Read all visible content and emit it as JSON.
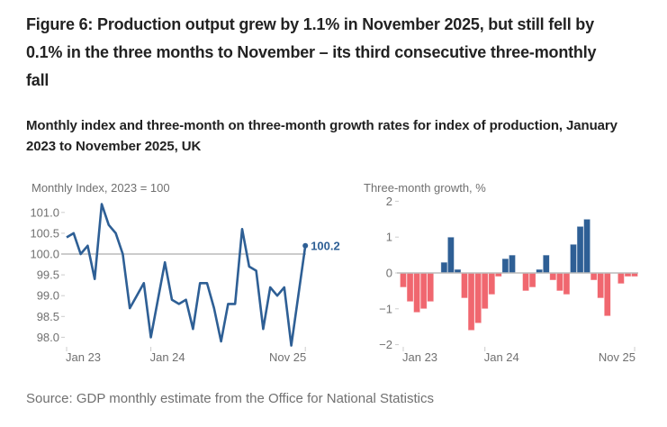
{
  "figure": {
    "title": "Figure 6: Production output grew by 1.1% in November 2025, but still fell by 0.1% in the three months to November – its third consecutive three-monthly fall",
    "subtitle": "Monthly index and three-month on three-month growth rates for index of production, January 2023 to November 2025, UK",
    "source": "Source: GDP monthly estimate from the Office for National Statistics"
  },
  "colors": {
    "line": "#2e5f95",
    "positive": "#2e5f95",
    "negative": "#f0676f",
    "reference": "#bbbbbb",
    "axis_text": "#707070"
  },
  "chart_data": [
    {
      "type": "line",
      "title": "Monthly Index, 2023 = 100",
      "ylabel": "Monthly Index, 2023 = 100",
      "xlabel": "",
      "x_tick_labels": [
        "Jan 23",
        "Jan 24",
        "Nov 25"
      ],
      "x_tick_index": [
        0,
        12,
        34
      ],
      "y_ticks": [
        98.0,
        98.5,
        99.0,
        99.5,
        100.0,
        100.5,
        101.0
      ],
      "y_tick_labels": [
        "98.0",
        "98.5",
        "99.0",
        "99.5",
        "100.0",
        "100.5",
        "101.0"
      ],
      "ylim": [
        97.8,
        101.3
      ],
      "reference_line": 100.0,
      "end_label": "100.2",
      "categories": [
        "Jan 23",
        "Feb 23",
        "Mar 23",
        "Apr 23",
        "May 23",
        "Jun 23",
        "Jul 23",
        "Aug 23",
        "Sep 23",
        "Oct 23",
        "Nov 23",
        "Dec 23",
        "Jan 24",
        "Feb 24",
        "Mar 24",
        "Apr 24",
        "May 24",
        "Jun 24",
        "Jul 24",
        "Aug 24",
        "Sep 24",
        "Oct 24",
        "Nov 24",
        "Dec 24",
        "Jan 25",
        "Feb 25",
        "Mar 25",
        "Apr 25",
        "May 25",
        "Jun 25",
        "Jul 25",
        "Aug 25",
        "Sep 25",
        "Oct 25",
        "Nov 25"
      ],
      "values": [
        100.4,
        100.5,
        100.0,
        100.2,
        99.4,
        101.2,
        100.7,
        100.5,
        100.0,
        98.7,
        99.0,
        99.3,
        98.0,
        98.9,
        99.8,
        98.9,
        98.8,
        98.9,
        98.2,
        99.3,
        99.3,
        98.7,
        97.9,
        98.8,
        98.8,
        100.6,
        99.7,
        99.6,
        98.2,
        99.2,
        99.0,
        99.2,
        97.8,
        99.0,
        100.2
      ],
      "grid": false,
      "legend": "none"
    },
    {
      "type": "bar",
      "title": "Three-month growth, %",
      "ylabel": "Three-month growth, %",
      "xlabel": "",
      "x_tick_labels": [
        "Jan 23",
        "Jan 24",
        "Nov 25"
      ],
      "x_tick_index": [
        0,
        12,
        34
      ],
      "y_ticks": [
        -2,
        -1,
        0,
        1,
        2
      ],
      "y_tick_labels": [
        "−2",
        "−1",
        "0",
        "1",
        "2"
      ],
      "ylim": [
        -2,
        2
      ],
      "categories": [
        "Jan 23",
        "Feb 23",
        "Mar 23",
        "Apr 23",
        "May 23",
        "Jun 23",
        "Jul 23",
        "Aug 23",
        "Sep 23",
        "Oct 23",
        "Nov 23",
        "Dec 23",
        "Jan 24",
        "Feb 24",
        "Mar 24",
        "Apr 24",
        "May 24",
        "Jun 24",
        "Jul 24",
        "Aug 24",
        "Sep 24",
        "Oct 24",
        "Nov 24",
        "Dec 24",
        "Jan 25",
        "Feb 25",
        "Mar 25",
        "Apr 25",
        "May 25",
        "Jun 25",
        "Jul 25",
        "Aug 25",
        "Sep 25",
        "Oct 25",
        "Nov 25"
      ],
      "values": [
        -0.4,
        -0.8,
        -1.1,
        -1.0,
        -0.8,
        0.0,
        0.3,
        1.0,
        0.1,
        -0.7,
        -1.6,
        -1.4,
        -1.0,
        -0.6,
        -0.1,
        0.4,
        0.5,
        0.0,
        -0.5,
        -0.4,
        0.1,
        0.5,
        -0.2,
        -0.5,
        -0.6,
        0.8,
        1.3,
        1.5,
        -0.2,
        -0.7,
        -1.2,
        0.0,
        -0.3,
        -0.1,
        -0.1
      ],
      "grid": false,
      "legend": "none"
    }
  ]
}
